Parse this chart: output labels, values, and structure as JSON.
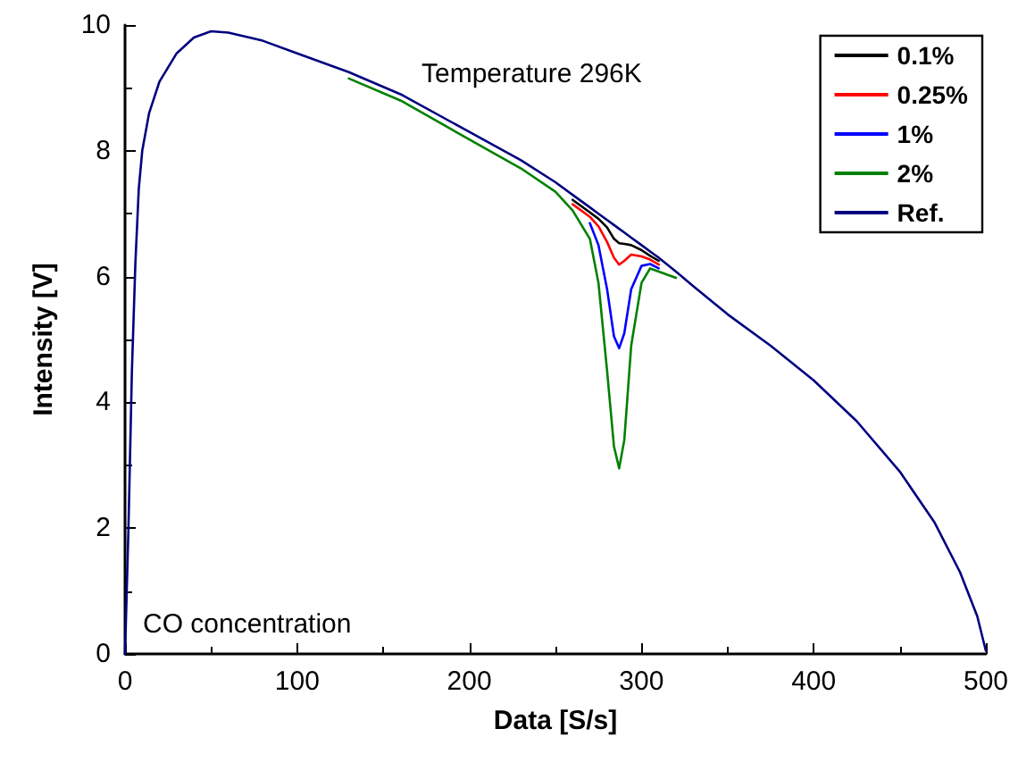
{
  "chart_data": {
    "type": "line",
    "xlabel": "Data [S/s]",
    "ylabel": "Intensity [V]",
    "x": [
      0,
      2,
      4,
      6,
      8,
      10,
      14,
      20,
      30,
      40,
      50,
      60,
      80,
      100,
      130,
      160,
      200,
      230,
      250,
      260,
      270,
      275,
      280,
      284,
      287,
      290,
      294,
      300,
      305,
      310,
      320,
      330,
      350,
      375,
      400,
      425,
      450,
      470,
      485,
      495,
      500
    ],
    "series": [
      {
        "name": "0.1%",
        "color": "#000000",
        "values": [
          null,
          null,
          null,
          null,
          null,
          null,
          null,
          null,
          null,
          null,
          null,
          null,
          null,
          null,
          null,
          null,
          null,
          null,
          null,
          7.22,
          7.02,
          6.92,
          6.78,
          6.6,
          6.53,
          6.52,
          6.5,
          6.42,
          6.33,
          6.25,
          null,
          null,
          null,
          null,
          null,
          null,
          null,
          null,
          null,
          null,
          null
        ]
      },
      {
        "name": "0.25%",
        "color": "#ff0000",
        "values": [
          null,
          null,
          null,
          null,
          null,
          null,
          null,
          null,
          null,
          null,
          null,
          null,
          null,
          null,
          null,
          null,
          null,
          null,
          null,
          7.15,
          6.95,
          6.8,
          6.55,
          6.3,
          6.19,
          6.25,
          6.35,
          6.32,
          6.27,
          6.19,
          null,
          null,
          null,
          null,
          null,
          null,
          null,
          null,
          null,
          null,
          null
        ]
      },
      {
        "name": "1%",
        "color": "#0000ff",
        "values": [
          null,
          null,
          null,
          null,
          null,
          null,
          null,
          null,
          null,
          null,
          null,
          null,
          null,
          null,
          null,
          null,
          null,
          null,
          null,
          null,
          6.85,
          6.5,
          5.8,
          5.05,
          4.86,
          5.1,
          5.8,
          6.17,
          6.2,
          6.13,
          null,
          null,
          null,
          null,
          null,
          null,
          null,
          null,
          null,
          null,
          null
        ]
      },
      {
        "name": "2%",
        "color": "#008000",
        "values": [
          null,
          null,
          null,
          null,
          null,
          null,
          null,
          null,
          null,
          null,
          null,
          null,
          null,
          null,
          9.15,
          8.8,
          8.18,
          7.72,
          7.35,
          7.05,
          6.6,
          5.9,
          4.5,
          3.3,
          2.95,
          3.4,
          4.9,
          5.9,
          6.13,
          6.08,
          5.98,
          null,
          null,
          null,
          null,
          null,
          null,
          null,
          null,
          null,
          null
        ]
      },
      {
        "name": "Ref.",
        "color": "#000080",
        "values": [
          0,
          2,
          4.5,
          6.2,
          7.4,
          8.0,
          8.6,
          9.1,
          9.55,
          9.8,
          9.9,
          9.88,
          9.75,
          9.55,
          9.25,
          8.9,
          8.3,
          7.85,
          7.5,
          7.3,
          7.1,
          7.0,
          6.9,
          6.82,
          6.76,
          6.7,
          6.62,
          6.5,
          6.4,
          6.3,
          6.08,
          5.85,
          5.4,
          4.9,
          4.35,
          3.7,
          2.9,
          2.1,
          1.3,
          0.6,
          0.05
        ]
      }
    ],
    "xlim": [
      0,
      500
    ],
    "xticks": [
      0,
      100,
      200,
      300,
      400,
      500
    ],
    "ylim": [
      0,
      10
    ],
    "yticks": [
      0,
      2,
      4,
      6,
      8,
      10
    ],
    "annotations": [
      "Temperature 296K",
      "CO concentration"
    ],
    "legend": "top right",
    "grid": false,
    "marker": "none",
    "line_style": "solid"
  }
}
